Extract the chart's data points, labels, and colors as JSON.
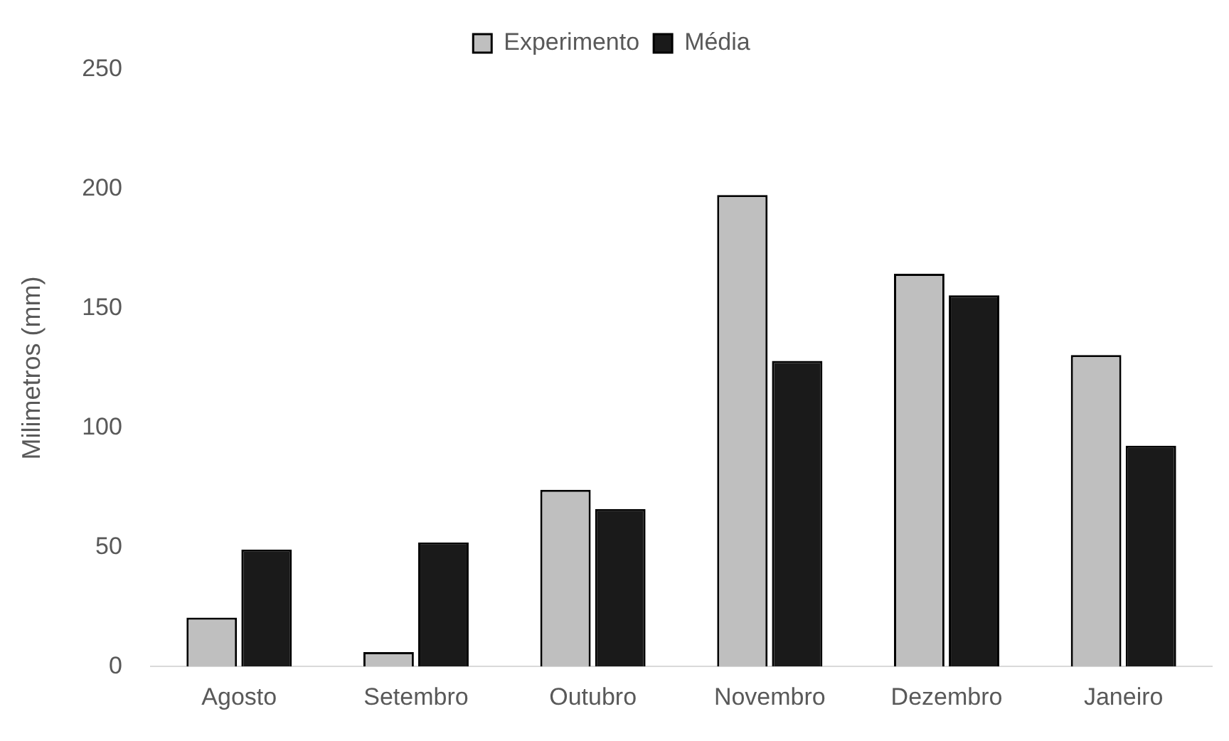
{
  "chart_data": {
    "type": "bar",
    "ylabel": "Milimetros (mm)",
    "categories": [
      "Agosto",
      "Setembro",
      "Outubro",
      "Novembro",
      "Dezembro",
      "Janeiro"
    ],
    "series": [
      {
        "name": "Experimento",
        "color": "#bfbfbf",
        "values": [
          20.5,
          6,
          74,
          197.5,
          164.5,
          130.5
        ]
      },
      {
        "name": "Média",
        "color": "#1a1a1a",
        "values": [
          49,
          52,
          66,
          128,
          155.5,
          92.5
        ]
      }
    ],
    "ylim": [
      0,
      250
    ],
    "yticks": [
      0,
      50,
      100,
      150,
      200,
      250
    ],
    "grid": false,
    "legend": "top"
  }
}
